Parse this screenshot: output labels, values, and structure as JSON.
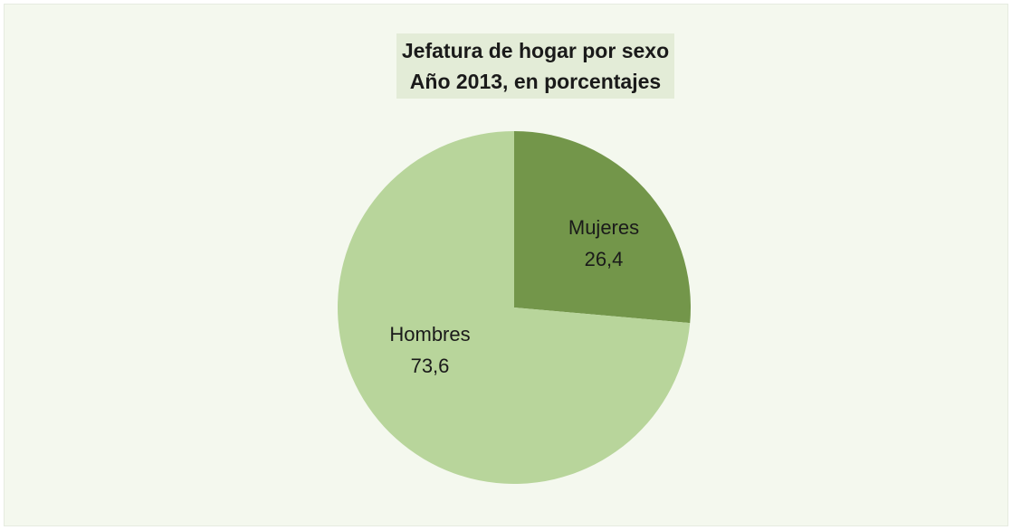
{
  "chart_data": {
    "type": "pie",
    "title": "Jefatura de hogar por sexo",
    "subtitle": "Año 2013, en porcentajes",
    "slices": [
      {
        "label": "Mujeres",
        "value": 26.4,
        "value_label": "26,4",
        "color": "#73964a"
      },
      {
        "label": "Hombres",
        "value": 73.6,
        "value_label": "73,6",
        "color": "#b8d59b"
      }
    ],
    "start": "12 o'clock",
    "direction": "clockwise",
    "legend": "none"
  }
}
